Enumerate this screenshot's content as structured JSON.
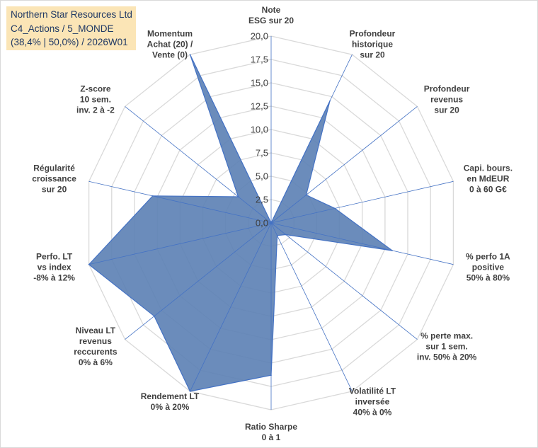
{
  "chart_data": {
    "type": "radar",
    "title_lines": [
      "Northern Star Resources Ltd",
      "C4_Actions / 5_MONDE",
      "(38,4% | 50,0%) / 2026W01"
    ],
    "rmin": 0,
    "rmax": 20,
    "tick_step": 2.5,
    "tick_labels": [
      "0,0",
      "2,5",
      "5,0",
      "7,5",
      "10,0",
      "12,5",
      "15,0",
      "17,5",
      "20,0"
    ],
    "axes": [
      {
        "label": [
          "Note",
          "ESG sur 20"
        ],
        "value": 0
      },
      {
        "label": [
          "Profondeur",
          "historique",
          "sur 20"
        ],
        "value": 14.5
      },
      {
        "label": [
          "Profondeur",
          "revenus",
          "sur 20"
        ],
        "value": 4.8
      },
      {
        "label": [
          "Capi. bours.",
          "en MdEUR",
          "0 à 60 G€"
        ],
        "value": 7.0
      },
      {
        "label": [
          "% perfo 1A",
          "positive",
          "50% à 80%"
        ],
        "value": 13.3
      },
      {
        "label": [
          "% perte max.",
          "sur 1 sem.",
          "inv. 50% à 20%"
        ],
        "value": 2.0
      },
      {
        "label": [
          "Volatilité LT",
          "inversée",
          "40% à 0%"
        ],
        "value": 1.5
      },
      {
        "label": [
          "Ratio Sharpe",
          "0 à 1"
        ],
        "value": 16.3
      },
      {
        "label": [
          "Rendement LT",
          "0% à 20%"
        ],
        "value": 20.0
      },
      {
        "label": [
          "Niveau LT",
          "revenus",
          "reccurents",
          "0% à 6%"
        ],
        "value": 16.0
      },
      {
        "label": [
          "Perfo. LT",
          "vs index",
          "-8% à 12%"
        ],
        "value": 20.0
      },
      {
        "label": [
          "Régularité",
          "croissance",
          "sur 20"
        ],
        "value": 13.0
      },
      {
        "label": [
          "Z-score",
          "10 sem.",
          "inv. 2 à -2"
        ],
        "value": 4.5
      },
      {
        "label": [
          "Momentum",
          "Achat (20) /",
          "Vente (0)"
        ],
        "value": 20.0
      }
    ],
    "series": [
      {
        "name": "Northern Star Resources Ltd"
      }
    ],
    "colors": {
      "fill": "#5b7fb4",
      "stroke": "#4472c4",
      "grid": "#d9d9d9",
      "axis": "#4472c4",
      "title_bg": "#fbe5b6"
    }
  }
}
